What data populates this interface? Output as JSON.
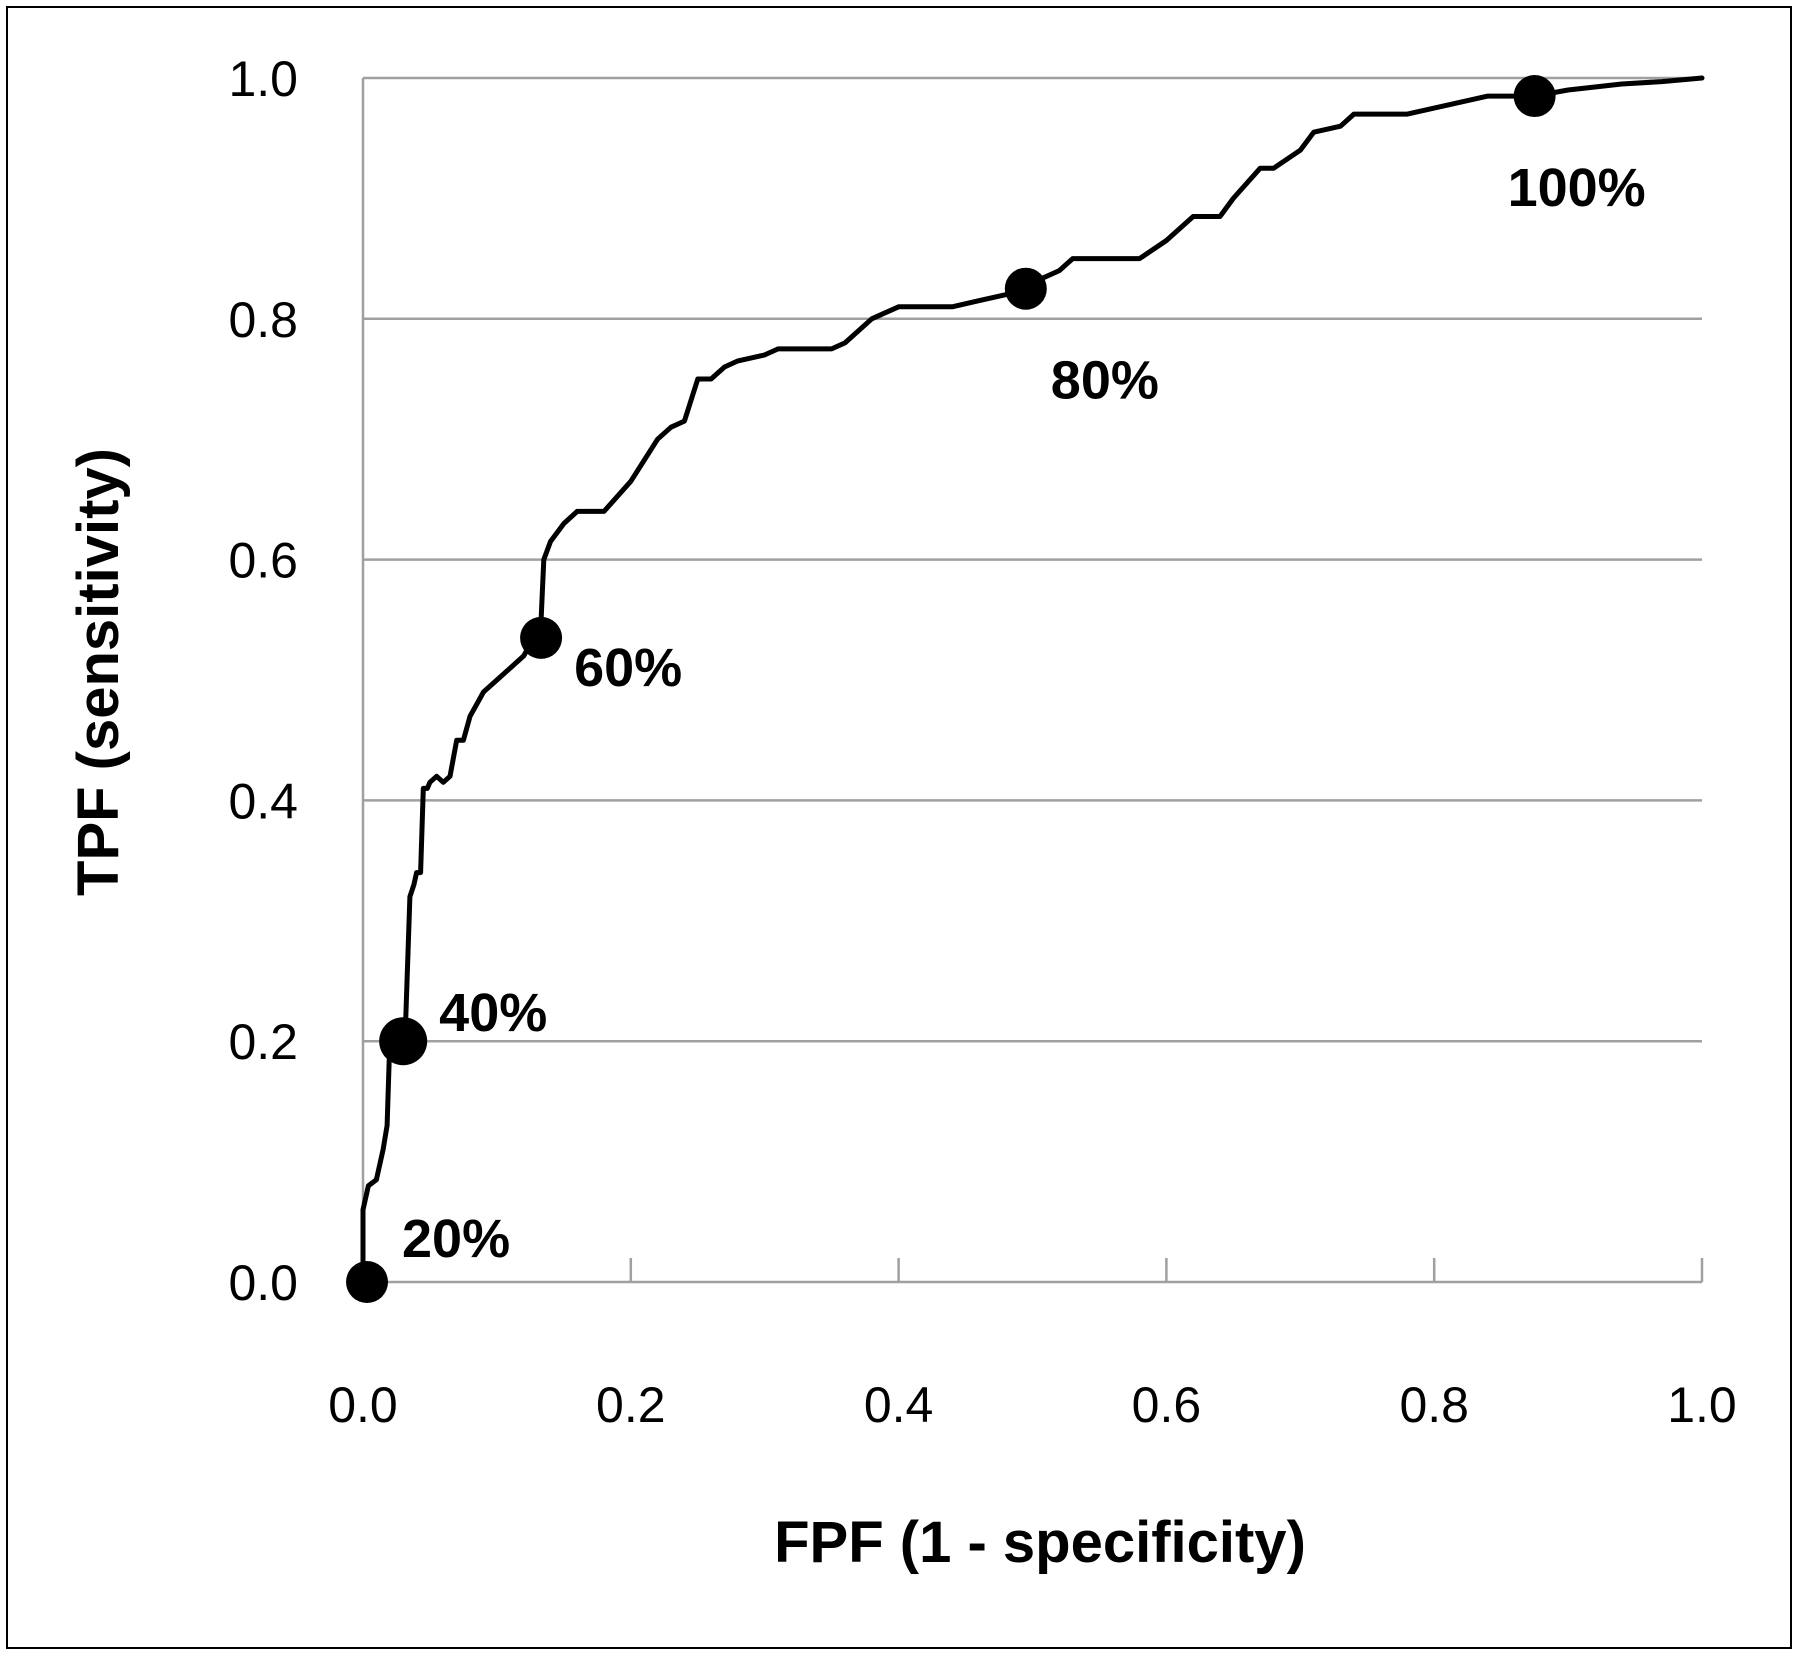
{
  "chart_data": {
    "type": "line",
    "xlabel": "FPF (1 - specificity)",
    "ylabel": "TPF (sensitivity)",
    "xlim": [
      0.0,
      1.0
    ],
    "ylim": [
      0.0,
      1.0
    ],
    "x_ticks": [
      "0.0",
      "0.2",
      "0.4",
      "0.6",
      "0.8",
      "1.0"
    ],
    "y_ticks": [
      "0.0",
      "0.2",
      "0.4",
      "0.6",
      "0.8",
      "1.0"
    ],
    "grid": "horizontal",
    "line_color": "#000000",
    "grid_color": "#a0a0a0",
    "series": [
      {
        "x": [
          0.0,
          0.0,
          0.004,
          0.01,
          0.015,
          0.018,
          0.02,
          0.025,
          0.03,
          0.032,
          0.035,
          0.038,
          0.04,
          0.043,
          0.045,
          0.048,
          0.05,
          0.055,
          0.06,
          0.065,
          0.07,
          0.075,
          0.08,
          0.085,
          0.09,
          0.1,
          0.11,
          0.12,
          0.125,
          0.13,
          0.133,
          0.135,
          0.14,
          0.15,
          0.16,
          0.18,
          0.2,
          0.22,
          0.23,
          0.24,
          0.25,
          0.26,
          0.27,
          0.28,
          0.3,
          0.31,
          0.33,
          0.35,
          0.36,
          0.38,
          0.4,
          0.41,
          0.42,
          0.44,
          0.46,
          0.48,
          0.495,
          0.5,
          0.52,
          0.53,
          0.54,
          0.56,
          0.58,
          0.6,
          0.62,
          0.64,
          0.65,
          0.67,
          0.68,
          0.7,
          0.71,
          0.73,
          0.74,
          0.76,
          0.78,
          0.8,
          0.82,
          0.84,
          0.86,
          0.875,
          0.9,
          0.94,
          0.97,
          1.0
        ],
        "y": [
          0.0,
          0.06,
          0.08,
          0.085,
          0.11,
          0.13,
          0.2,
          0.205,
          0.21,
          0.22,
          0.32,
          0.33,
          0.34,
          0.34,
          0.41,
          0.41,
          0.415,
          0.42,
          0.415,
          0.42,
          0.45,
          0.45,
          0.47,
          0.48,
          0.49,
          0.5,
          0.51,
          0.52,
          0.53,
          0.535,
          0.55,
          0.6,
          0.615,
          0.63,
          0.64,
          0.64,
          0.665,
          0.7,
          0.71,
          0.715,
          0.75,
          0.75,
          0.76,
          0.765,
          0.77,
          0.775,
          0.775,
          0.775,
          0.78,
          0.8,
          0.81,
          0.81,
          0.81,
          0.81,
          0.815,
          0.82,
          0.825,
          0.83,
          0.84,
          0.85,
          0.85,
          0.85,
          0.85,
          0.865,
          0.885,
          0.885,
          0.9,
          0.925,
          0.925,
          0.94,
          0.955,
          0.96,
          0.97,
          0.97,
          0.97,
          0.975,
          0.98,
          0.985,
          0.985,
          0.985,
          0.99,
          0.995,
          0.997,
          1.0
        ]
      }
    ],
    "markers": [
      {
        "x": 0.003,
        "y": 0.0,
        "label": "20%"
      },
      {
        "x": 0.03,
        "y": 0.2,
        "label": "40%"
      },
      {
        "x": 0.133,
        "y": 0.535,
        "label": "60%"
      },
      {
        "x": 0.495,
        "y": 0.825,
        "label": "80%"
      },
      {
        "x": 0.875,
        "y": 0.985,
        "label": "100%"
      }
    ]
  }
}
